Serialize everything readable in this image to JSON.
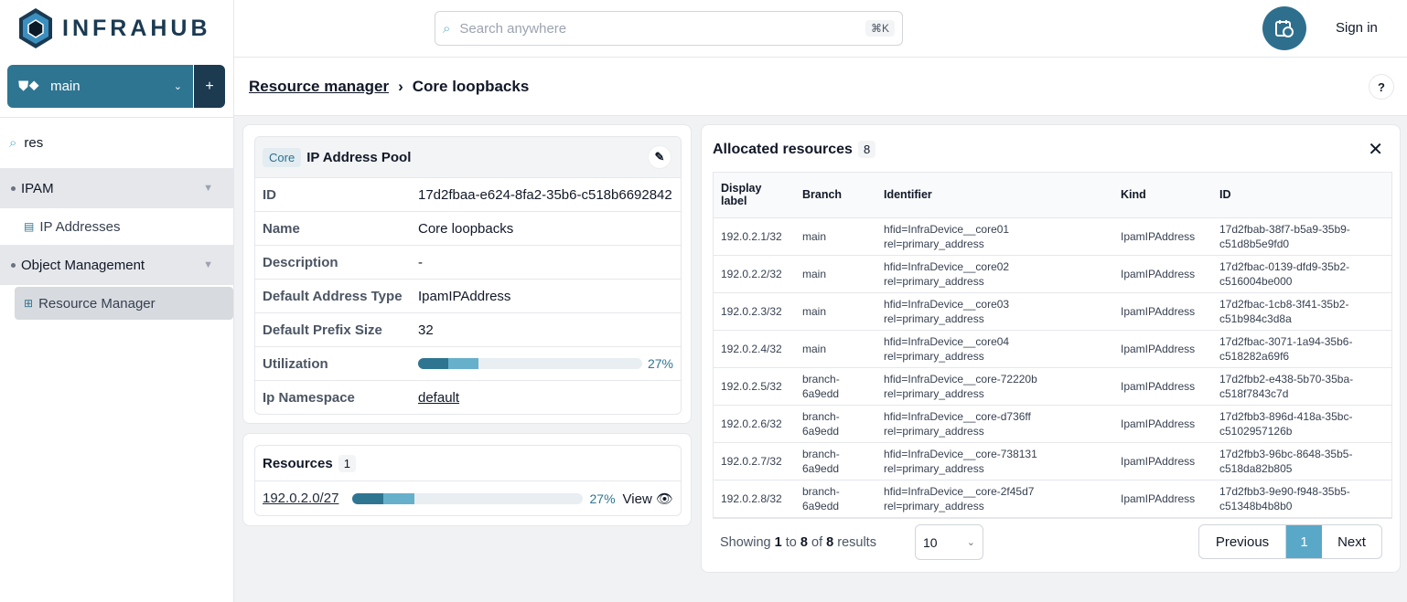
{
  "app": {
    "name": "INFRAHUB"
  },
  "branch": {
    "name": "main",
    "add_label": "+"
  },
  "sidebar": {
    "search_value": "res",
    "groups": [
      {
        "label": "IPAM",
        "items": [
          {
            "label": "IP Addresses"
          }
        ]
      },
      {
        "label": "Object Management",
        "items": [
          {
            "label": "Resource Manager",
            "active": true
          }
        ]
      }
    ]
  },
  "topbar": {
    "search_placeholder": "Search anywhere",
    "shortcut": "⌘K",
    "signin": "Sign in"
  },
  "breadcrumb": {
    "parent": "Resource manager",
    "separator": "›",
    "current": "Core loopbacks",
    "help": "?"
  },
  "pool": {
    "badge": "Core",
    "title": "IP Address Pool",
    "props": [
      {
        "key": "ID",
        "value": "17d2fbaa-e624-8fa2-35b6-c518b6692842"
      },
      {
        "key": "Name",
        "value": "Core loopbacks"
      },
      {
        "key": "Description",
        "value": "-"
      },
      {
        "key": "Default Address Type",
        "value": "IpamIPAddress"
      },
      {
        "key": "Default Prefix Size",
        "value": "32"
      },
      {
        "key": "Utilization",
        "value": "27%",
        "fraction": 0.27
      },
      {
        "key": "Ip Namespace",
        "value": "default"
      }
    ]
  },
  "resources": {
    "title": "Resources",
    "count": "1",
    "items": [
      {
        "prefix": "192.0.2.0/27",
        "utilization": "27%",
        "view": "View"
      }
    ]
  },
  "allocated": {
    "title": "Allocated resources",
    "count": "8",
    "columns": [
      "Display label",
      "Branch",
      "Identifier",
      "Kind",
      "ID"
    ],
    "rows": [
      {
        "label": "192.0.2.1/32",
        "branch": "main",
        "hfid": "hfid=InfraDevice__core01",
        "rel": "rel=primary_address",
        "kind": "IpamIPAddress",
        "id1": "17d2fbab-38f7-b5a9-35b9-",
        "id2": "c51d8b5e9fd0"
      },
      {
        "label": "192.0.2.2/32",
        "branch": "main",
        "hfid": "hfid=InfraDevice__core02",
        "rel": "rel=primary_address",
        "kind": "IpamIPAddress",
        "id1": "17d2fbac-0139-dfd9-35b2-",
        "id2": "c516004be000"
      },
      {
        "label": "192.0.2.3/32",
        "branch": "main",
        "hfid": "hfid=InfraDevice__core03",
        "rel": "rel=primary_address",
        "kind": "IpamIPAddress",
        "id1": "17d2fbac-1cb8-3f41-35b2-",
        "id2": "c51b984c3d8a"
      },
      {
        "label": "192.0.2.4/32",
        "branch": "main",
        "hfid": "hfid=InfraDevice__core04",
        "rel": "rel=primary_address",
        "kind": "IpamIPAddress",
        "id1": "17d2fbac-3071-1a94-35b6-",
        "id2": "c518282a69f6"
      },
      {
        "label": "192.0.2.5/32",
        "branch": "branch-6a9edd",
        "hfid": "hfid=InfraDevice__core-72220b",
        "rel": "rel=primary_address",
        "kind": "IpamIPAddress",
        "id1": "17d2fbb2-e438-5b70-35ba-",
        "id2": "c518f7843c7d"
      },
      {
        "label": "192.0.2.6/32",
        "branch": "branch-6a9edd",
        "hfid": "hfid=InfraDevice__core-d736ff",
        "rel": "rel=primary_address",
        "kind": "IpamIPAddress",
        "id1": "17d2fbb3-896d-418a-35bc-",
        "id2": "c5102957126b"
      },
      {
        "label": "192.0.2.7/32",
        "branch": "branch-6a9edd",
        "hfid": "hfid=InfraDevice__core-738131",
        "rel": "rel=primary_address",
        "kind": "IpamIPAddress",
        "id1": "17d2fbb3-96bc-8648-35b5-",
        "id2": "c518da82b805"
      },
      {
        "label": "192.0.2.8/32",
        "branch": "branch-6a9edd",
        "hfid": "hfid=InfraDevice__core-2f45d7",
        "rel": "rel=primary_address",
        "kind": "IpamIPAddress",
        "id1": "17d2fbb3-9e90-f948-35b5-",
        "id2": "c51348b4b8b0"
      }
    ],
    "footer": {
      "showing": "Showing",
      "from": "1",
      "to_word": "to",
      "to": "8",
      "of_word": "of",
      "total": "8",
      "results": "results",
      "page_size": "10",
      "previous": "Previous",
      "page": "1",
      "next": "Next"
    }
  },
  "colors": {
    "brand": "#2e7592",
    "brand_dark": "#1c3a50",
    "accent_light": "#67b0cb"
  }
}
